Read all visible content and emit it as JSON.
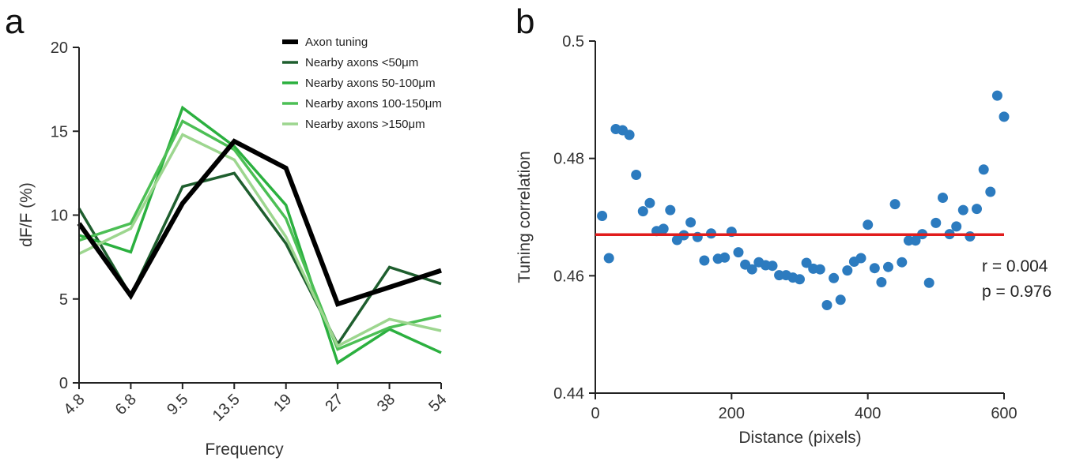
{
  "chart_data": [
    {
      "panel_label": "a",
      "type": "line",
      "xlabel": "Frequency",
      "ylabel": "dF/F (%)",
      "categories": [
        "4.8",
        "6.8",
        "9.5",
        "13.5",
        "19",
        "27",
        "38",
        "54"
      ],
      "ylim": [
        0,
        20
      ],
      "yticks": [
        "0",
        "5",
        "10",
        "15",
        "20"
      ],
      "grid": false,
      "legend_position": "top-right",
      "series": [
        {
          "name": "Axon tuning",
          "color": "#000000",
          "width": 6,
          "values": [
            9.5,
            5.2,
            10.7,
            14.4,
            12.8,
            4.7,
            5.7,
            6.7
          ]
        },
        {
          "name": "Nearby axons <50μm",
          "color": "#1e5e2e",
          "width": 3.5,
          "values": [
            10.4,
            5.2,
            11.7,
            12.5,
            8.3,
            2.3,
            6.9,
            5.9
          ]
        },
        {
          "name": "Nearby axons 50-100μm",
          "color": "#2bb03f",
          "width": 3.5,
          "values": [
            8.8,
            7.8,
            16.4,
            14.1,
            10.6,
            1.2,
            3.2,
            1.8
          ]
        },
        {
          "name": "Nearby axons 100-150μm",
          "color": "#4cbf55",
          "width": 3.5,
          "values": [
            8.5,
            9.5,
            15.6,
            13.9,
            9.8,
            2.0,
            3.3,
            4.0
          ]
        },
        {
          "name": "Nearby axons >150μm",
          "color": "#9dd68f",
          "width": 3.5,
          "values": [
            7.7,
            9.2,
            14.8,
            13.3,
            8.7,
            2.2,
            3.8,
            3.1
          ]
        }
      ]
    },
    {
      "panel_label": "b",
      "type": "scatter",
      "xlabel": "Distance (pixels)",
      "ylabel": "Tuning correlation",
      "xlim": [
        0,
        600
      ],
      "ylim": [
        0.44,
        0.5
      ],
      "xticks": [
        "0",
        "200",
        "400",
        "600"
      ],
      "yticks": [
        "0.44",
        "0.46",
        "0.48",
        "0.5"
      ],
      "grid": false,
      "point_color": "#2c7bbf",
      "fit_color": "#e11c1c",
      "fit_line": {
        "x": [
          0,
          600
        ],
        "y": [
          0.467,
          0.467
        ]
      },
      "annotations": [
        "r = 0.004",
        "p = 0.976"
      ],
      "x": [
        10,
        20,
        30,
        40,
        50,
        60,
        70,
        80,
        90,
        100,
        110,
        120,
        130,
        140,
        150,
        160,
        170,
        180,
        190,
        200,
        210,
        220,
        230,
        240,
        250,
        260,
        270,
        280,
        290,
        300,
        310,
        320,
        330,
        340,
        350,
        360,
        370,
        380,
        390,
        400,
        410,
        420,
        430,
        440,
        450,
        460,
        470,
        480,
        490,
        500,
        510,
        520,
        530,
        540,
        550,
        560,
        570,
        580,
        590,
        600
      ],
      "y": [
        0.4702,
        0.463,
        0.485,
        0.4848,
        0.484,
        0.4772,
        0.471,
        0.4724,
        0.4676,
        0.468,
        0.4712,
        0.4661,
        0.4669,
        0.4691,
        0.4666,
        0.4626,
        0.4672,
        0.4629,
        0.4631,
        0.4675,
        0.464,
        0.4619,
        0.4611,
        0.4623,
        0.4618,
        0.4617,
        0.4601,
        0.4601,
        0.4597,
        0.4594,
        0.4622,
        0.4612,
        0.4611,
        0.455,
        0.4596,
        0.4559,
        0.4609,
        0.4624,
        0.463,
        0.4687,
        0.4613,
        0.4589,
        0.4615,
        0.4722,
        0.4623,
        0.466,
        0.466,
        0.4671,
        0.4588,
        0.469,
        0.4733,
        0.4671,
        0.4684,
        0.4712,
        0.4667,
        0.4714,
        0.4781,
        0.4743,
        0.4907,
        0.4871
      ]
    }
  ]
}
